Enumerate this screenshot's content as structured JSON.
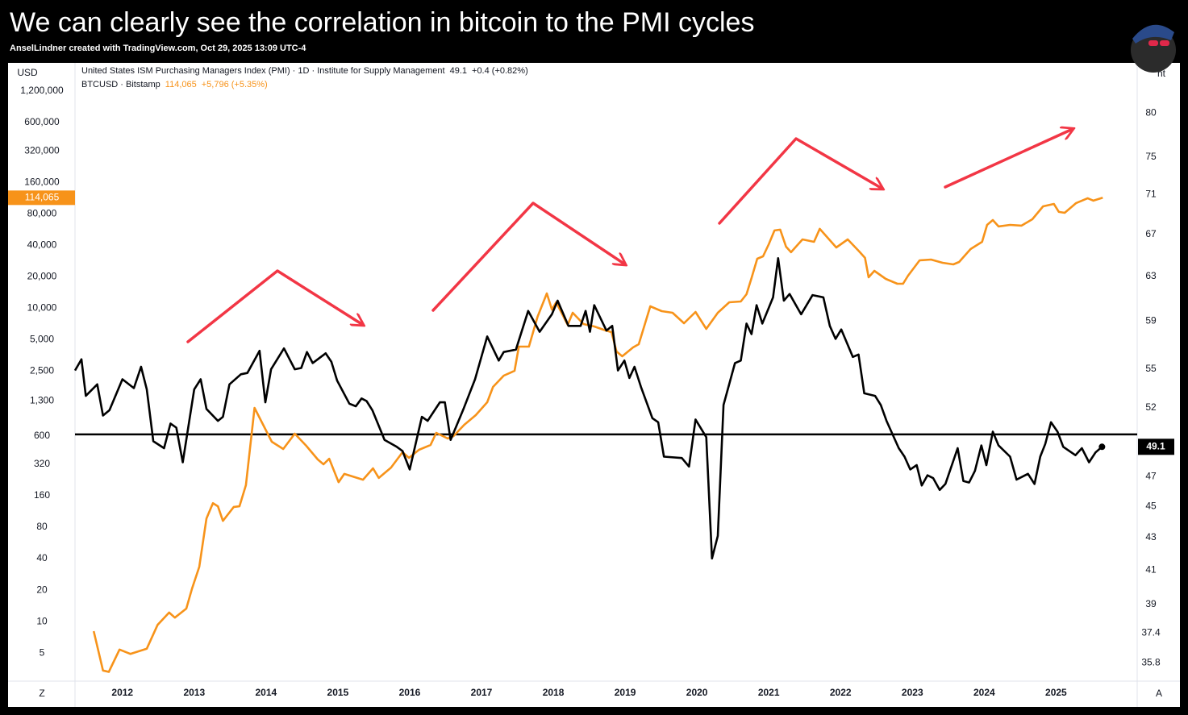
{
  "header": {
    "title": "We can clearly see the correlation in bitcoin to the PMI cycles",
    "subtitle": "AnselLindner created with TradingView.com, Oct 29, 2025 13:09 UTC-4"
  },
  "chart_data": {
    "type": "line",
    "ylabel": "USD",
    "y2label": "nt",
    "corner_left": "Z",
    "corner_right": "A",
    "log_scale": true,
    "y2_log_scale": true,
    "grid": false,
    "xlim": [
      2011.34,
      2026.13
    ],
    "xticks": [
      2012,
      2013,
      2014,
      2015,
      2016,
      2017,
      2018,
      2019,
      2020,
      2021,
      2022,
      2023,
      2024,
      2025
    ],
    "ylim": [
      2.69,
      2230000
    ],
    "yticks": [
      5,
      10,
      20,
      40,
      80,
      160,
      320,
      600,
      {
        "value": 1300,
        "label": "1,300"
      },
      {
        "value": 2500,
        "label": "2,500"
      },
      {
        "value": 5000,
        "label": "5,000"
      },
      {
        "value": 10000,
        "label": "10,000"
      },
      {
        "value": 20000,
        "label": "20,000"
      },
      {
        "value": 40000,
        "label": "40,000"
      },
      {
        "value": 80000,
        "label": "80,000"
      },
      {
        "value": 160000,
        "label": "160,000"
      },
      {
        "value": 320000,
        "label": "320,000"
      },
      {
        "value": 600000,
        "label": "600,000"
      },
      {
        "value": 1200000,
        "label": "1,200,000"
      }
    ],
    "y2lim": [
      34.85,
      86.1
    ],
    "y2ticks": [
      35.8,
      37.4,
      39,
      41,
      43,
      45,
      47,
      52,
      55,
      59,
      63,
      67,
      71,
      75,
      80
    ],
    "reference_line": {
      "value": 50,
      "axis": "y2",
      "color": "#000000"
    },
    "series": [
      {
        "name": "United States ISM Purchasing Managers Index (PMI) · 1D · Institute for Supply Management",
        "change": "+0.4 (+0.82%)",
        "color": "#000000",
        "axis": "y2",
        "x": [
          2011.34,
          2011.43,
          2011.49,
          2011.65,
          2011.73,
          2011.82,
          2012.0,
          2012.16,
          2012.26,
          2012.34,
          2012.43,
          2012.58,
          2012.67,
          2012.75,
          2012.84,
          2013.0,
          2013.09,
          2013.17,
          2013.33,
          2013.4,
          2013.49,
          2013.65,
          2013.74,
          2013.91,
          2013.99,
          2014.07,
          2014.25,
          2014.4,
          2014.49,
          2014.57,
          2014.65,
          2014.83,
          2014.91,
          2014.99,
          2015.16,
          2015.25,
          2015.33,
          2015.4,
          2015.48,
          2015.65,
          2015.82,
          2015.9,
          2016.0,
          2016.17,
          2016.25,
          2016.42,
          2016.49,
          2016.57,
          2016.75,
          2016.91,
          2017.08,
          2017.24,
          2017.31,
          2017.48,
          2017.65,
          2017.81,
          2017.98,
          2018.06,
          2018.21,
          2018.38,
          2018.45,
          2018.51,
          2018.57,
          2018.74,
          2018.82,
          2018.9,
          2018.99,
          2019.06,
          2019.13,
          2019.22,
          2019.38,
          2019.46,
          2019.54,
          2019.79,
          2019.89,
          2019.98,
          2020.13,
          2020.21,
          2020.29,
          2020.37,
          2020.53,
          2020.61,
          2020.69,
          2020.76,
          2020.83,
          2020.91,
          2021.06,
          2021.13,
          2021.21,
          2021.29,
          2021.45,
          2021.61,
          2021.76,
          2021.85,
          2021.93,
          2022.01,
          2022.17,
          2022.25,
          2022.33,
          2022.48,
          2022.56,
          2022.64,
          2022.81,
          2022.89,
          2022.97,
          2023.06,
          2023.13,
          2023.21,
          2023.29,
          2023.38,
          2023.46,
          2023.63,
          2023.71,
          2023.79,
          2023.87,
          2023.96,
          2024.03,
          2024.12,
          2024.2,
          2024.36,
          2024.45,
          2024.61,
          2024.7,
          2024.78,
          2024.85,
          2024.93,
          2025.02,
          2025.1,
          2025.27,
          2025.36,
          2025.46,
          2025.55,
          2025.64
        ],
        "values": [
          54.9,
          55.8,
          52.9,
          53.8,
          51.4,
          51.8,
          54.2,
          53.5,
          55.2,
          53.4,
          49.5,
          49.0,
          50.8,
          50.5,
          48.0,
          53.4,
          54.2,
          51.9,
          51.0,
          51.3,
          53.8,
          54.6,
          54.7,
          56.5,
          52.4,
          55.0,
          56.7,
          55.0,
          55.1,
          56.4,
          55.5,
          56.3,
          55.6,
          54.1,
          52.3,
          52.1,
          52.7,
          52.5,
          51.8,
          49.6,
          49.1,
          48.8,
          47.5,
          51.3,
          51.0,
          52.4,
          52.4,
          49.6,
          51.9,
          54.2,
          57.7,
          55.7,
          56.4,
          56.6,
          59.9,
          58.1,
          59.6,
          60.8,
          58.6,
          58.6,
          59.9,
          58.1,
          60.4,
          58.2,
          58.6,
          54.9,
          55.7,
          54.3,
          55.2,
          53.6,
          51.2,
          50.9,
          48.4,
          48.3,
          47.7,
          51.1,
          49.8,
          41.7,
          43.1,
          52.2,
          55.5,
          55.7,
          58.8,
          57.9,
          60.4,
          58.8,
          61.1,
          64.7,
          60.8,
          61.4,
          59.6,
          61.3,
          61.1,
          58.6,
          57.5,
          58.3,
          56.0,
          56.2,
          53.1,
          52.9,
          52.2,
          51.0,
          49.0,
          48.4,
          47.5,
          47.8,
          46.4,
          47.1,
          46.9,
          46.1,
          46.5,
          49.0,
          46.7,
          46.6,
          47.4,
          49.2,
          47.8,
          50.2,
          49.2,
          48.4,
          46.8,
          47.2,
          46.5,
          48.4,
          49.3,
          50.9,
          50.2,
          49.1,
          48.5,
          49.0,
          48.0,
          48.7,
          49.1
        ]
      },
      {
        "name": "BTCUSD · Bitstamp",
        "change": "+5,796 (+5.35%)",
        "last_value_label": "114,065",
        "color": "#f7931a",
        "x": [
          2011.6,
          2011.73,
          2011.81,
          2011.96,
          2012.11,
          2012.34,
          2012.49,
          2012.65,
          2012.73,
          2012.89,
          2012.97,
          2013.07,
          2013.17,
          2013.26,
          2013.33,
          2013.4,
          2013.55,
          2013.63,
          2013.72,
          2013.84,
          2013.92,
          2014.08,
          2014.24,
          2014.4,
          2014.56,
          2014.72,
          2014.8,
          2014.88,
          2015.01,
          2015.09,
          2015.35,
          2015.49,
          2015.57,
          2015.74,
          2015.9,
          2015.99,
          2016.13,
          2016.29,
          2016.37,
          2016.53,
          2016.61,
          2016.76,
          2016.92,
          2017.08,
          2017.16,
          2017.31,
          2017.46,
          2017.52,
          2017.66,
          2017.78,
          2017.91,
          2017.98,
          2018.04,
          2018.2,
          2018.27,
          2018.42,
          2018.57,
          2018.73,
          2018.81,
          2018.88,
          2018.96,
          2019.11,
          2019.19,
          2019.35,
          2019.51,
          2019.66,
          2019.82,
          2019.98,
          2020.13,
          2020.29,
          2020.45,
          2020.61,
          2020.69,
          2020.76,
          2020.84,
          2020.92,
          2021.0,
          2021.08,
          2021.16,
          2021.24,
          2021.31,
          2021.47,
          2021.63,
          2021.71,
          2021.87,
          2021.94,
          2022.1,
          2022.26,
          2022.34,
          2022.39,
          2022.47,
          2022.63,
          2022.79,
          2022.87,
          2022.94,
          2023.1,
          2023.26,
          2023.42,
          2023.57,
          2023.65,
          2023.81,
          2023.97,
          2024.04,
          2024.12,
          2024.2,
          2024.36,
          2024.52,
          2024.67,
          2024.82,
          2024.97,
          2025.04,
          2025.12,
          2025.28,
          2025.44,
          2025.52,
          2025.65
        ],
        "values": [
          8.1,
          3.4,
          3.3,
          5.4,
          4.9,
          5.5,
          9.3,
          12.2,
          10.9,
          13.3,
          20.7,
          33.5,
          97,
          136,
          127,
          92,
          125,
          127,
          202,
          1110,
          866,
          527,
          449,
          629,
          482,
          356,
          320,
          362,
          216,
          259,
          228,
          293,
          237,
          298,
          418,
          369,
          441,
          490,
          640,
          565,
          596,
          765,
          946,
          1257,
          1763,
          2261,
          2515,
          4287,
          4287,
          8272,
          13855,
          9710,
          11394,
          6927,
          9045,
          7053,
          6685,
          6117,
          5900,
          3853,
          3463,
          4212,
          4524,
          10427,
          9371,
          9045,
          7174,
          9205,
          6339,
          9045,
          11394,
          11595,
          13609,
          19414,
          29745,
          31371,
          40960,
          55425,
          56425,
          38840,
          34310,
          45575,
          43200,
          57450,
          43200,
          38135,
          45575,
          34910,
          30290,
          19765,
          22790,
          19075,
          17150,
          17150,
          20480,
          28705,
          29225,
          27210,
          26265,
          27705,
          36820,
          43200,
          62740,
          69810,
          60585,
          62740,
          61700,
          71060,
          94425,
          99575,
          83400,
          81920,
          101400,
          112850,
          106950,
          114065
        ]
      }
    ]
  }
}
